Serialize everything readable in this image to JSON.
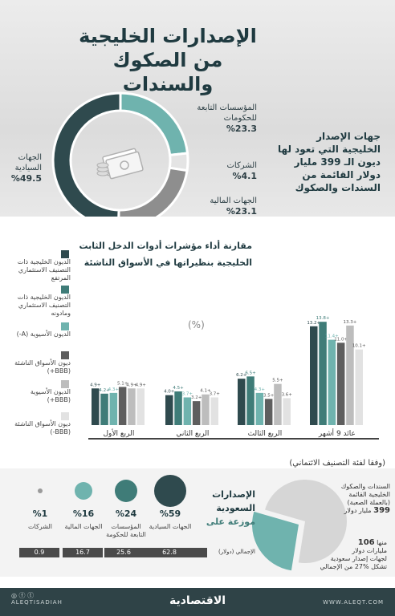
{
  "header": {
    "title_line1": "الإصدارات الخليجية",
    "title_line2": "من الصكوك والسندات",
    "note": "جهات الإصدار الخليجية التي تعود لها ديون الـ 399 مليار دولار القائمة من السندات والصكوك"
  },
  "issuer_donut": {
    "type": "pie",
    "slices": [
      {
        "label": "الجهات السيادية",
        "value_text": "%49.5",
        "value": 49.5,
        "color": "#2f4a4e"
      },
      {
        "label": "المؤسسات التابعة للحكومات",
        "value_text": "%23.3",
        "value": 23.3,
        "color": "#6fb3ae"
      },
      {
        "label": "الشركات",
        "value_text": "%4.1",
        "value": 4.1,
        "color": "#e4e4e4"
      },
      {
        "label": "الجهات المالية",
        "value_text": "%23.1",
        "value": 23.1,
        "color": "#8e8e8e"
      }
    ]
  },
  "chart_data": {
    "type": "bar",
    "title_line1": "مقارنة أداء مؤشرات أدوات الدخل الثابت",
    "title_line2": "الخليجية بنظيراتها في الأسواق الناشئة",
    "unit": "(%)",
    "footnote": "(وفقا لفئة التصنيف الائتماني)",
    "categories": [
      "عائد 9 أشهر",
      "الربع الثالث",
      "الربع الثاني",
      "الربع الأول"
    ],
    "series": [
      {
        "name": "الديون الخليجية ذات التصنيف الاستثماري المرتفع",
        "color": "#2f4a4e",
        "values": [
          13.2,
          6.2,
          4.0,
          4.9
        ],
        "labels": [
          "13.2+",
          "6.2+",
          "4.0+",
          "4.9+"
        ]
      },
      {
        "name": "الديون الخليجية ذات التصنيف الاستثماري ومادونه",
        "color": "#3f7c78",
        "values": [
          13.8,
          6.5,
          4.5,
          4.2
        ],
        "labels": [
          "13.8+",
          "6.5+",
          "4.5+",
          "4.2+"
        ]
      },
      {
        "name": "الديون الأسيوية (A-)",
        "color": "#6fb3ae",
        "values": [
          11.4,
          4.3,
          3.7,
          4.3
        ],
        "labels": [
          "11.4+",
          "4.3+",
          "3.7+",
          "4.3+"
        ]
      },
      {
        "name": "ديون الأسواق الناشئة (BBB+)",
        "color": "#5e5e5e",
        "values": [
          11.0,
          3.5,
          3.2,
          5.1
        ],
        "labels": [
          "11.0+",
          "3.5+",
          "3.2+",
          "5.1+"
        ]
      },
      {
        "name": "الديون الأسيوية (BBB+)",
        "color": "#bdbdbd",
        "values": [
          13.3,
          5.5,
          4.1,
          4.9
        ],
        "labels": [
          "13.3+",
          "5.5+",
          "4.1+",
          "4.9+"
        ]
      },
      {
        "name": "ديون الأسواق الناشئة (BBB-)",
        "color": "#e2e2e2",
        "values": [
          10.1,
          3.6,
          3.7,
          4.9
        ],
        "labels": [
          "10.1+",
          "3.6+",
          "3.7+",
          "4.9+"
        ]
      }
    ],
    "ylim": [
      0,
      15
    ]
  },
  "saudi": {
    "total_line1": "السندات والصكوك",
    "total_line2": "الخليجية القائمة",
    "total_line3": "(بالعملة الصعبة)",
    "total_value": "399",
    "total_unit": "مليار دولار",
    "share_prefix": "منها",
    "share_value": "106",
    "share_line1": "مليارات دولار",
    "share_line2": "لجهات إصدار سعودية",
    "share_line3": "تشكل %27 من الإجمالي",
    "share_fraction": 0.27,
    "colors": {
      "rest": "#d6d6d6",
      "share": "#6fb3ae"
    },
    "dist_title_line1": "الإصدارات",
    "dist_title_line2": "السعودية",
    "dist_title_line3": "موزعة على",
    "total_label": "الإجمالي (دولار)",
    "distribution": [
      {
        "label": "الجهات السيادية",
        "pct": "%59",
        "value": "62.8",
        "color": "#2f4a4e"
      },
      {
        "label": "المؤسسات التابعة للحكومة",
        "pct": "%24",
        "value": "25.6",
        "color": "#3f7c78"
      },
      {
        "label": "الجهات المالية",
        "pct": "%16",
        "value": "16.7",
        "color": "#6fb3ae"
      },
      {
        "label": "الشركات",
        "pct": "%1",
        "value": "0.9",
        "color": "#9a9a9a"
      }
    ]
  },
  "footer": {
    "handle": "ALEQTISADIAH",
    "logo": "الاقتصادية",
    "website": "WWW.ALEQT.COM",
    "social": "◎ ⓕ ⓣ"
  }
}
